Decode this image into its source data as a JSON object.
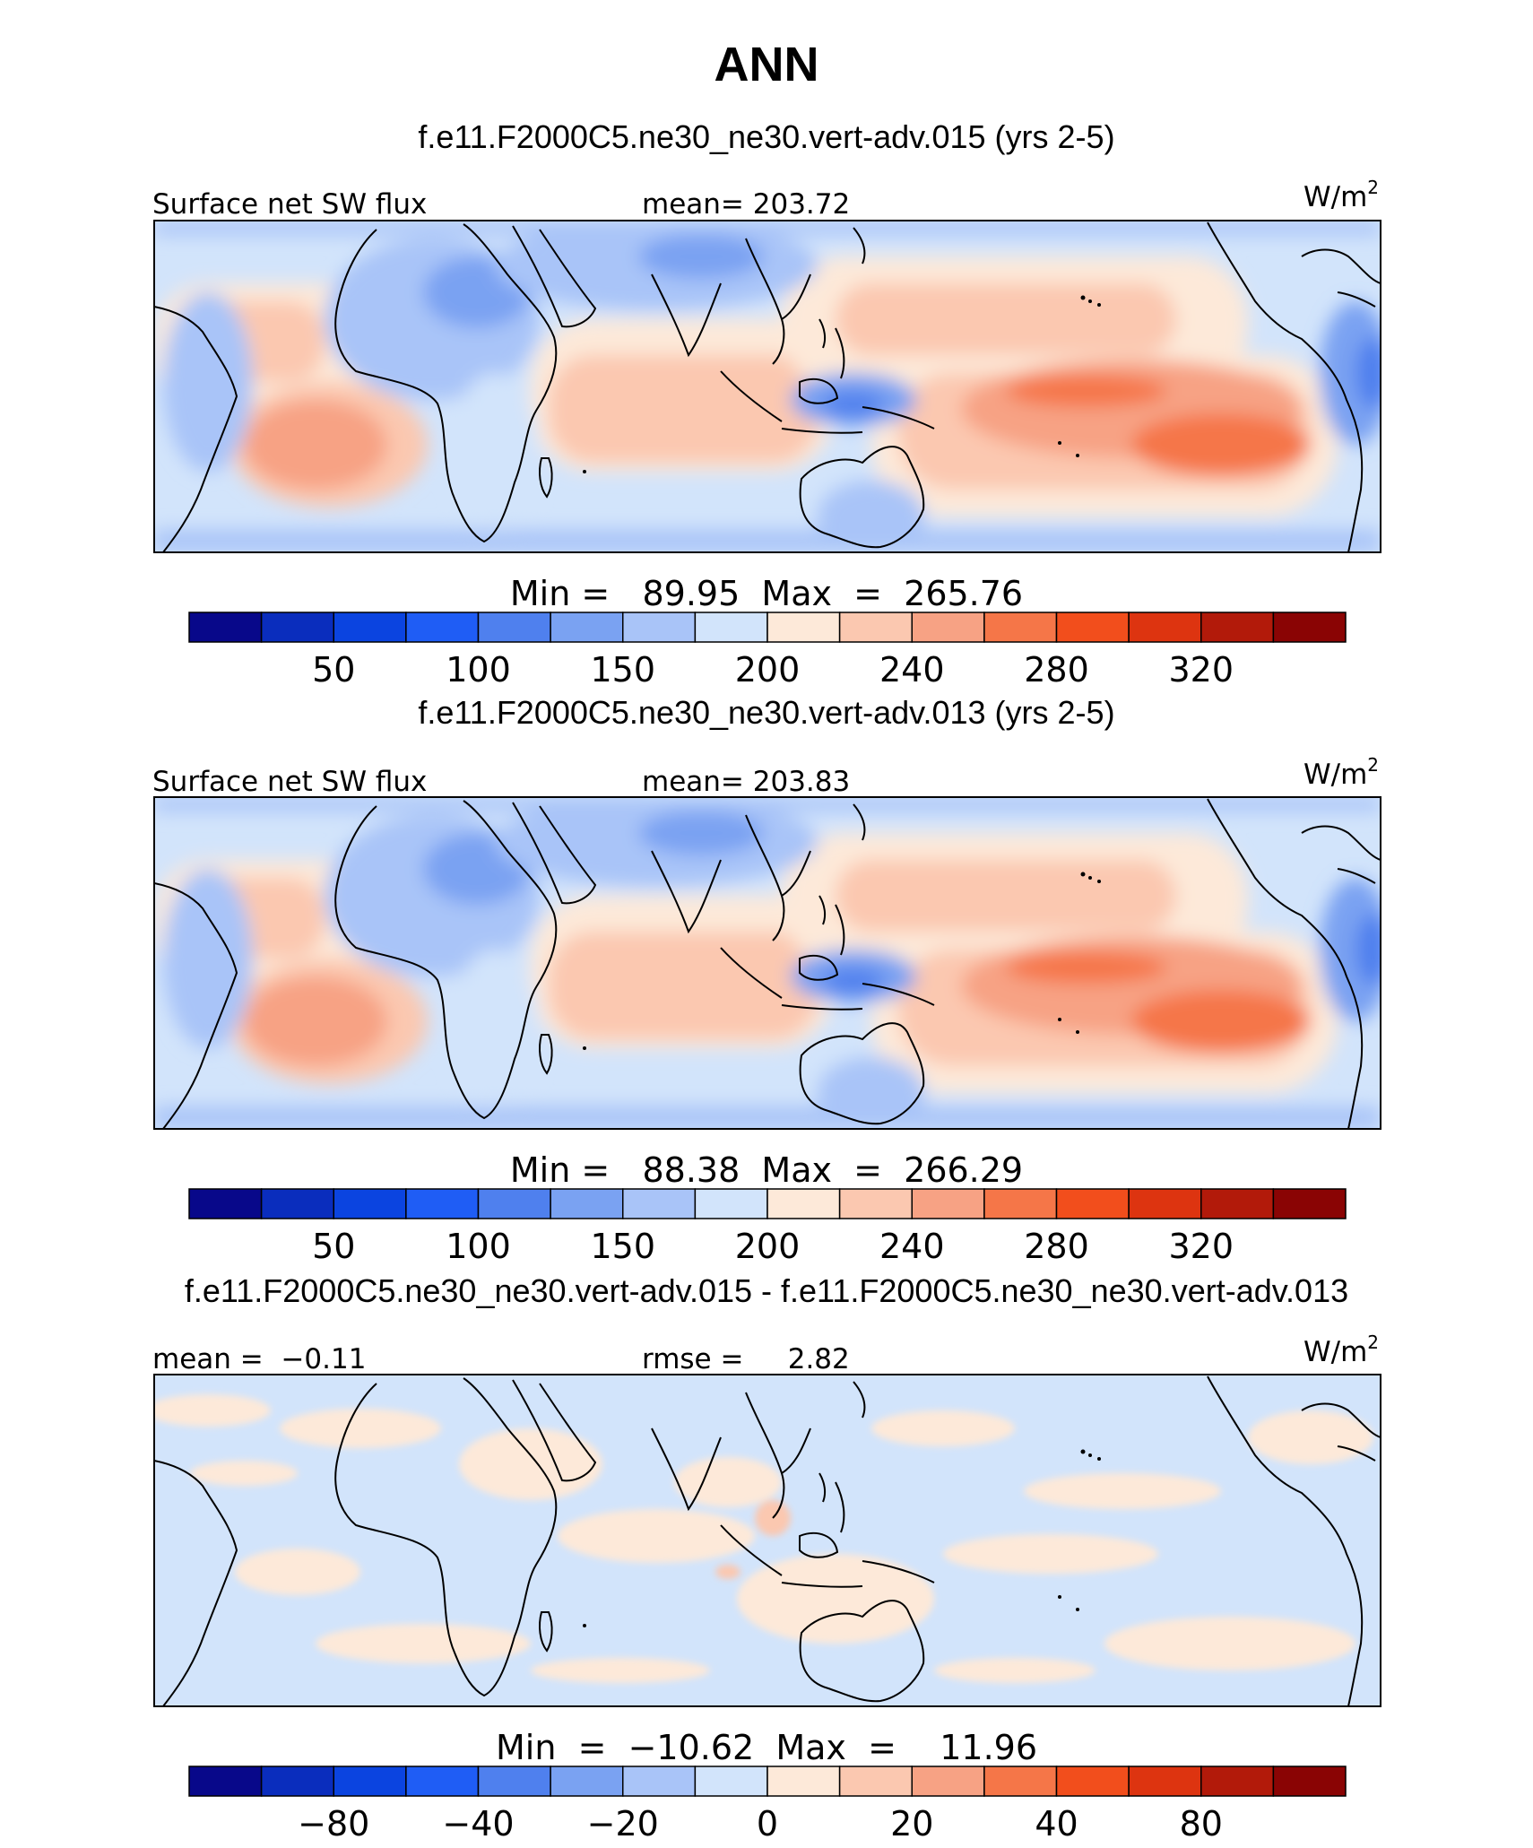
{
  "chart_data": {
    "type": "heatmap",
    "title": "ANN",
    "panels": [
      {
        "case_title": "f.e11.F2000C5.ne30_ne30.vert-adv.015 (yrs 2-5)",
        "left_label": "Surface net SW flux",
        "center_label": "mean= 203.72",
        "units_base": "W/m",
        "units_exp": "2",
        "min_max": "Min =   89.95  Max  =  265.76",
        "colorbar_ticks": [
          "50",
          "100",
          "150",
          "200",
          "240",
          "280",
          "320"
        ]
      },
      {
        "case_title": "f.e11.F2000C5.ne30_ne30.vert-adv.013 (yrs 2-5)",
        "left_label": "Surface net SW flux",
        "center_label": "mean= 203.83",
        "units_base": "W/m",
        "units_exp": "2",
        "min_max": "Min =   88.38  Max  =  266.29",
        "colorbar_ticks": [
          "50",
          "100",
          "150",
          "200",
          "240",
          "280",
          "320"
        ]
      },
      {
        "case_title": "f.e11.F2000C5.ne30_ne30.vert-adv.015 - f.e11.F2000C5.ne30_ne30.vert-adv.013",
        "left_label": "mean =  −0.11",
        "center_label": "rmse =     2.82",
        "units_base": "W/m",
        "units_exp": "2",
        "min_max": "Min  =  −10.62  Max  =    11.96",
        "colorbar_ticks": [
          "−80",
          "−40",
          "−20",
          "0",
          "20",
          "40",
          "80"
        ]
      }
    ],
    "colorbar_colors": [
      "#08088a",
      "#0a2dbd",
      "#0b44e0",
      "#1f5df5",
      "#4f80ee",
      "#7aa2f2",
      "#a9c4f8",
      "#d2e4fb",
      "#fde9d9",
      "#fbc8b0",
      "#f7a284",
      "#f57648",
      "#f24e1c",
      "#dd3410",
      "#b21a0a",
      "#8a0404"
    ]
  }
}
